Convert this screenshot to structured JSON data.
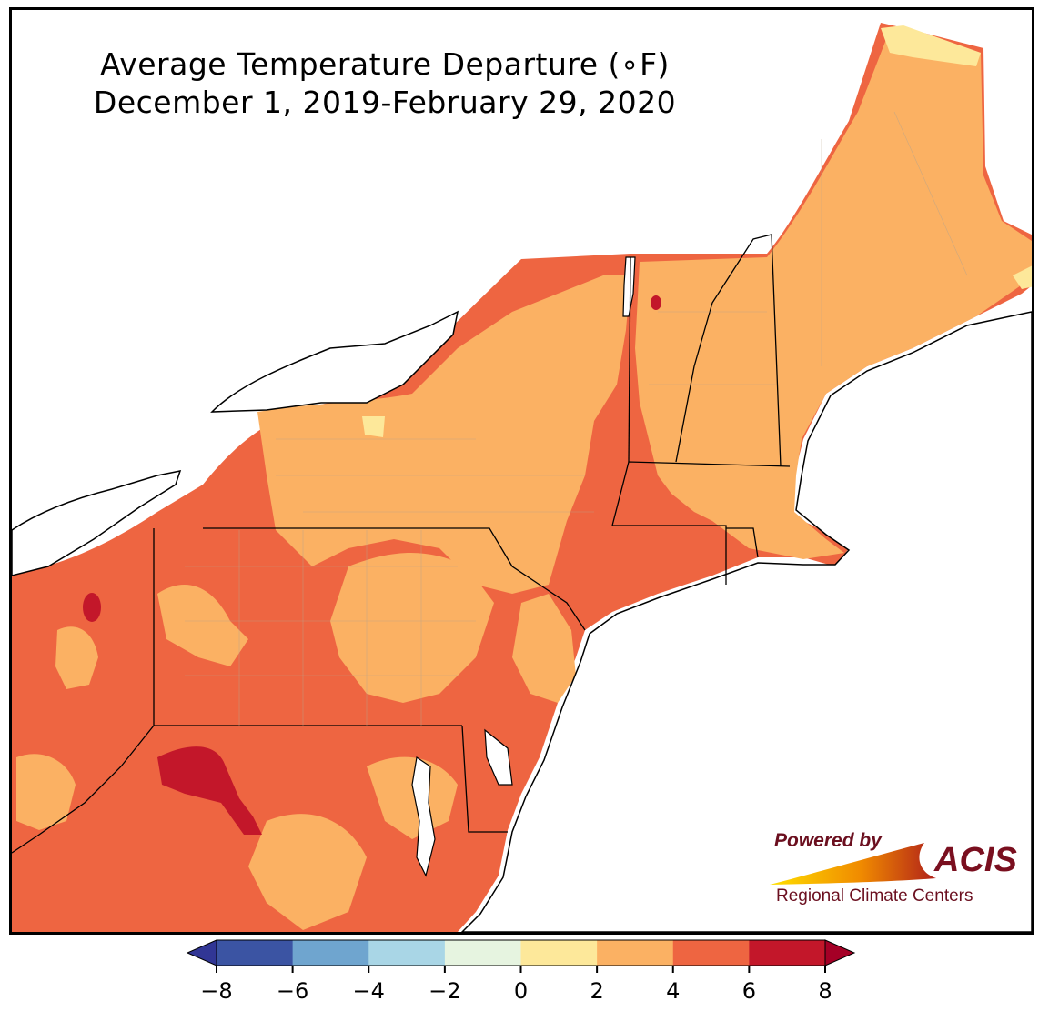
{
  "title": {
    "line1": "Average Temperature Departure (∘F)",
    "line2": "December 1, 2019-February 29, 2020"
  },
  "logo": {
    "powered_by": "Powered by",
    "brand": "ACIS",
    "subtitle": "Regional Climate Centers"
  },
  "legend": {
    "ticks": [
      "−8",
      "−6",
      "−4",
      "−2",
      "0",
      "2",
      "4",
      "6",
      "8"
    ],
    "colors": [
      "#3b54a3",
      "#6fa5cf",
      "#a9d6e6",
      "#e6f4e0",
      "#fde89a",
      "#fbb163",
      "#ee6541",
      "#c3172a"
    ],
    "under_color": "#313695",
    "over_color": "#a50026"
  },
  "map_colors": {
    "water": "#ffffff",
    "band_0_2": "#fde89a",
    "band_2_4": "#fbb163",
    "band_4_6": "#ee6541",
    "band_6_8": "#c3172a",
    "state_line": "#000000",
    "county_line": "#b8a48c"
  }
}
